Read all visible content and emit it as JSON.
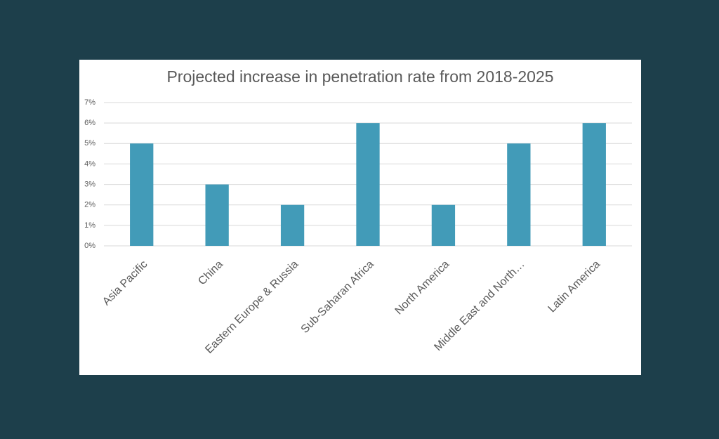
{
  "chart_data": {
    "type": "bar",
    "title": "Projected increase in penetration rate from 2018-2025",
    "categories": [
      "Asia Pacific",
      "China",
      "Eastern Europe & Russia",
      "Sub-Saharan Africa",
      "North America",
      "Middle East and North…",
      "Latin America"
    ],
    "values": [
      5,
      3,
      2,
      6,
      2,
      5,
      6
    ],
    "color": "#429bb8",
    "ylim": [
      0,
      7
    ],
    "yticks": [
      {
        "value": 0,
        "label": "0%"
      },
      {
        "value": 1,
        "label": "1%"
      },
      {
        "value": 2,
        "label": "2%"
      },
      {
        "value": 3,
        "label": "3%"
      },
      {
        "value": 4,
        "label": "4%"
      },
      {
        "value": 5,
        "label": "5%"
      },
      {
        "value": 6,
        "label": "6%"
      },
      {
        "value": 7,
        "label": "7%"
      }
    ],
    "grid": true
  }
}
